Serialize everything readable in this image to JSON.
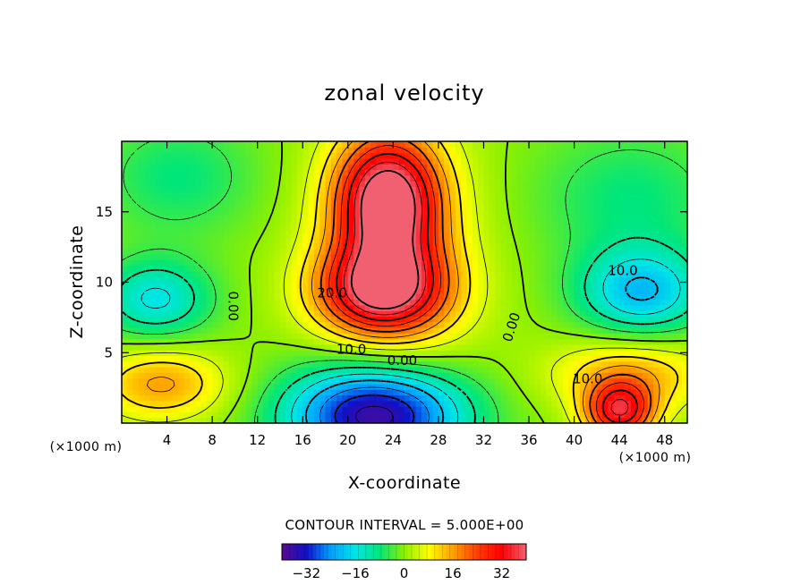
{
  "chart_data": {
    "type": "heatmap",
    "title": "zonal velocity",
    "xlabel": "X-coordinate",
    "ylabel": "Z-coordinate",
    "x_unit": "(×1000 m)",
    "y_unit": "(×1000 m)",
    "xlim": [
      0,
      50
    ],
    "ylim": [
      0,
      20
    ],
    "x_ticks": [
      4,
      8,
      12,
      16,
      20,
      24,
      28,
      32,
      36,
      40,
      44,
      48
    ],
    "y_ticks": [
      5,
      10,
      15
    ],
    "contour_interval_text": "CONTOUR INTERVAL = 5.000E+00",
    "contour_interval": 5,
    "colorbar": {
      "range": [
        -40,
        40
      ],
      "ticks": [
        -32,
        -16,
        0,
        16,
        32
      ],
      "colormap": [
        "#5a0a8c",
        "#1010c8",
        "#00a0ff",
        "#00e6e6",
        "#00e67a",
        "#8cf000",
        "#ffff00",
        "#ffa000",
        "#ff3c00",
        "#ff0000",
        "#f06070"
      ]
    },
    "contour_labels": [
      {
        "text": "20.0",
        "x": 18.6,
        "z": 9.2,
        "rot": 0
      },
      {
        "text": "10.0",
        "x": 20.3,
        "z": 5.2,
        "rot": 0
      },
      {
        "text": "0.00",
        "x": 24.8,
        "z": 4.4,
        "rot": 0
      },
      {
        "text": "0.00",
        "x": 9.8,
        "z": 8.3,
        "rot": 90
      },
      {
        "text": "0.00",
        "x": 34.5,
        "z": 6.8,
        "rot": -72
      },
      {
        "text": "10.0",
        "x": 44.3,
        "z": 10.8,
        "rot": 0
      },
      {
        "text": "10.0",
        "x": 41.2,
        "z": 3.1,
        "rot": 0
      }
    ],
    "features": [
      {
        "x": 23.5,
        "z": 15.8,
        "value": 40,
        "sx": 3.2,
        "sz": 3.2
      },
      {
        "x": 23.0,
        "z": 9.5,
        "value": 34,
        "sx": 4.0,
        "sz": 2.2
      },
      {
        "x": 24.0,
        "z": 11.5,
        "value": 12,
        "sx": 5.0,
        "sz": 7.0
      },
      {
        "x": 22.5,
        "z": 0.6,
        "value": -40,
        "sx": 5.5,
        "sz": 2.6
      },
      {
        "x": 44.0,
        "z": 0.8,
        "value": 32,
        "sx": 2.2,
        "sz": 1.5
      },
      {
        "x": 46.0,
        "z": 9.3,
        "value": -20,
        "sx": 4.0,
        "sz": 2.2
      },
      {
        "x": 3.0,
        "z": 8.8,
        "value": -16,
        "sx": 3.5,
        "sz": 2.0
      },
      {
        "x": 3.5,
        "z": 2.8,
        "value": 16,
        "sx": 4.0,
        "sz": 1.8
      },
      {
        "x": 45.0,
        "z": 3.5,
        "value": 14,
        "sx": 5.0,
        "sz": 1.8
      },
      {
        "x": 5.0,
        "z": 17.5,
        "value": -8,
        "sx": 5.0,
        "sz": 3.0
      },
      {
        "x": 45.0,
        "z": 16.0,
        "value": -8,
        "sx": 6.0,
        "sz": 3.5
      }
    ]
  }
}
